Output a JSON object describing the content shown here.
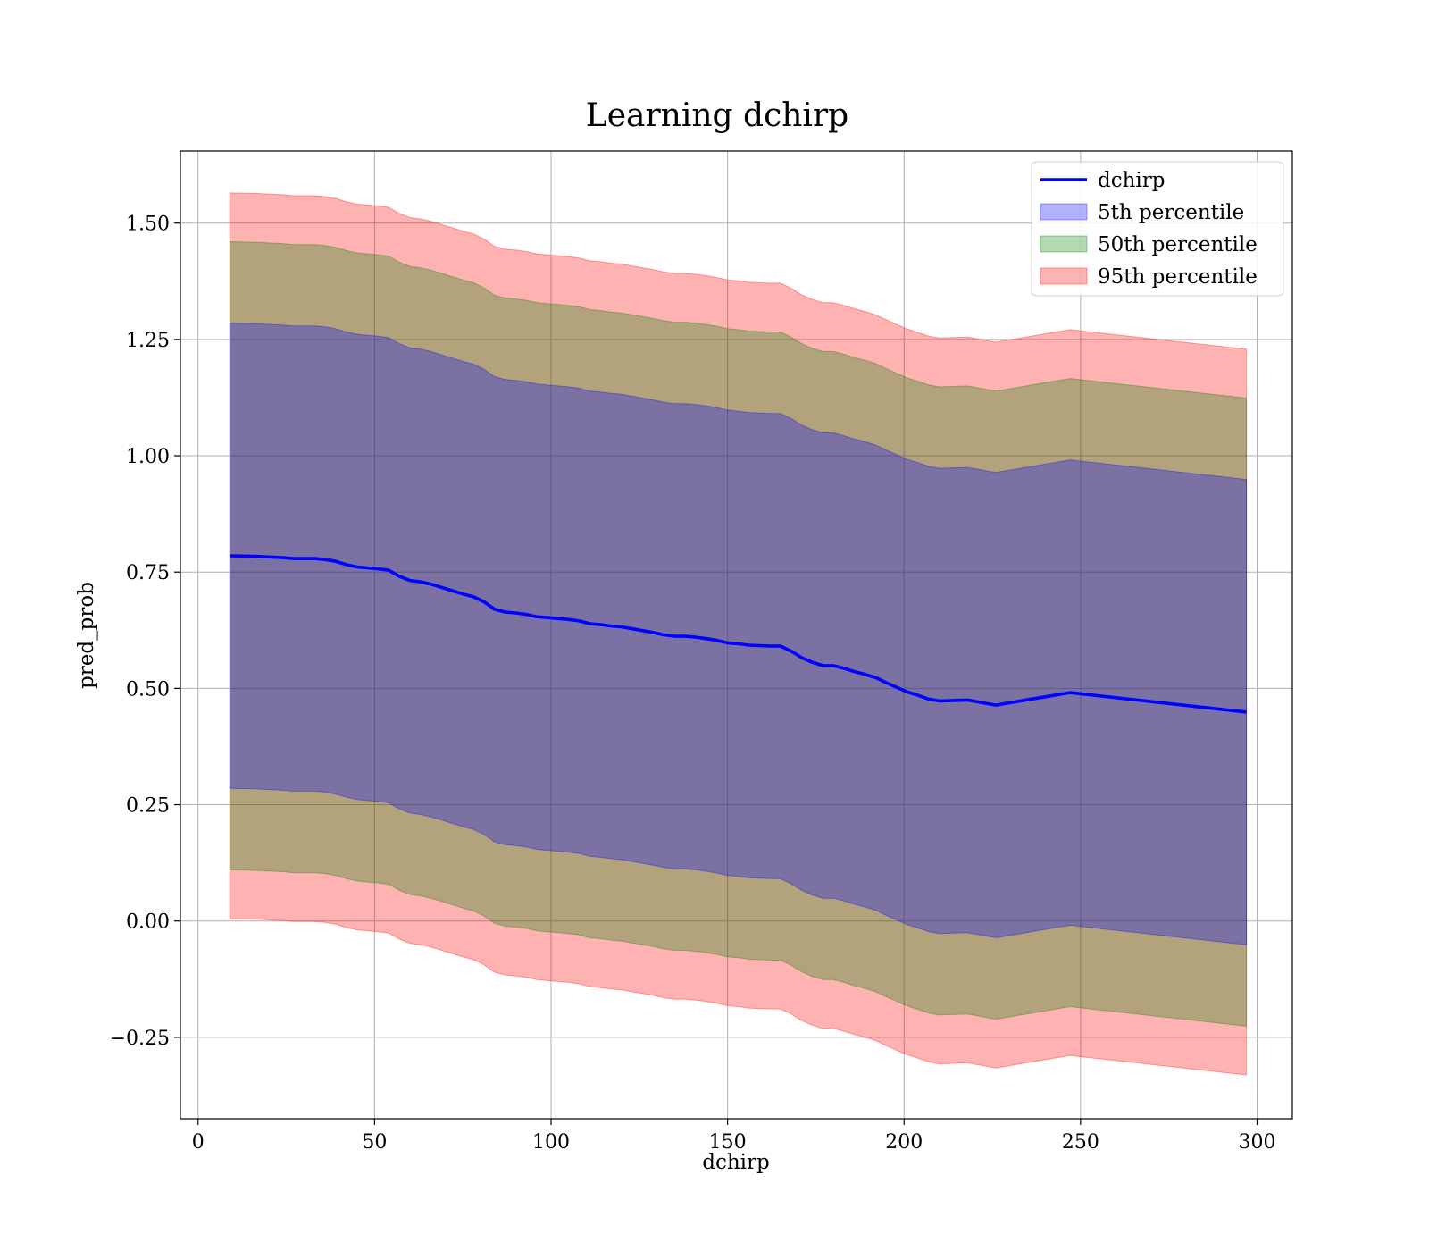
{
  "chart_data": {
    "type": "line",
    "title": "Learning dchirp",
    "xlabel": "dchirp",
    "ylabel": "pred_prob",
    "xlim": [
      -5,
      310
    ],
    "ylim": [
      -0.425,
      1.655
    ],
    "xticks": [
      0,
      50,
      100,
      150,
      200,
      250,
      300
    ],
    "yticks": [
      -0.25,
      0.0,
      0.25,
      0.5,
      0.75,
      1.0,
      1.25,
      1.5
    ],
    "xtick_labels": [
      "0",
      "50",
      "100",
      "150",
      "200",
      "250",
      "300"
    ],
    "ytick_labels": [
      "−0.25",
      "0.00",
      "0.25",
      "0.50",
      "0.75",
      "1.00",
      "1.25",
      "1.50"
    ],
    "grid": true,
    "legend_position": "top-right",
    "x": [
      9,
      16,
      24,
      27,
      30,
      33,
      36,
      39,
      42,
      45,
      48,
      51,
      54,
      57,
      60,
      63,
      66,
      69,
      72,
      75,
      78,
      81,
      84,
      87,
      90,
      93,
      96,
      99,
      102,
      105,
      108,
      111,
      114,
      117,
      120,
      123,
      126,
      129,
      132,
      135,
      138,
      141,
      144,
      147,
      150,
      153,
      156,
      159,
      162,
      165,
      168,
      171,
      174,
      177,
      180,
      183,
      186,
      189,
      192,
      195,
      198,
      201,
      204,
      207,
      210,
      218,
      226,
      247,
      297
    ],
    "series": [
      {
        "name": "dchirp",
        "kind": "line",
        "color": "#0000ff",
        "values": [
          0.785,
          0.784,
          0.781,
          0.779,
          0.779,
          0.779,
          0.777,
          0.773,
          0.766,
          0.761,
          0.759,
          0.757,
          0.754,
          0.741,
          0.732,
          0.729,
          0.724,
          0.717,
          0.71,
          0.703,
          0.697,
          0.686,
          0.67,
          0.664,
          0.662,
          0.659,
          0.654,
          0.652,
          0.65,
          0.648,
          0.645,
          0.639,
          0.637,
          0.634,
          0.632,
          0.628,
          0.624,
          0.62,
          0.615,
          0.612,
          0.612,
          0.61,
          0.607,
          0.603,
          0.598,
          0.596,
          0.593,
          0.592,
          0.591,
          0.591,
          0.58,
          0.566,
          0.556,
          0.549,
          0.549,
          0.543,
          0.536,
          0.53,
          0.523,
          0.512,
          0.502,
          0.492,
          0.485,
          0.477,
          0.473,
          0.475,
          0.464,
          0.491,
          0.449
        ]
      },
      {
        "name": "5th percentile",
        "kind": "band",
        "color": "#0000ff",
        "offset": 0.5
      },
      {
        "name": "50th percentile",
        "kind": "band",
        "color": "#008000",
        "offset": 0.675
      },
      {
        "name": "95th percentile",
        "kind": "band",
        "color": "#ff0000",
        "offset": 0.78
      }
    ]
  }
}
